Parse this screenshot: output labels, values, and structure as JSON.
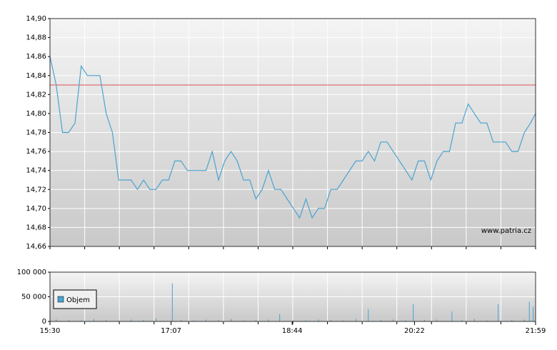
{
  "chart_data": [
    {
      "type": "line",
      "color": "#4aa3d0",
      "reference_line": 14.83,
      "reference_color": "#e05050",
      "annotation": "www.patria.cz",
      "xlim": [
        930,
        1319
      ],
      "ylim": [
        14.66,
        14.9
      ],
      "yticks": [
        {
          "value": 14.66,
          "label": "14,66"
        },
        {
          "value": 14.68,
          "label": "14,68"
        },
        {
          "value": 14.7,
          "label": "14,70"
        },
        {
          "value": 14.72,
          "label": "14,72"
        },
        {
          "value": 14.74,
          "label": "14,74"
        },
        {
          "value": 14.76,
          "label": "14,76"
        },
        {
          "value": 14.78,
          "label": "14,78"
        },
        {
          "value": 14.8,
          "label": "14,80"
        },
        {
          "value": 14.82,
          "label": "14,82"
        },
        {
          "value": 14.84,
          "label": "14,84"
        },
        {
          "value": 14.86,
          "label": "14,86"
        },
        {
          "value": 14.88,
          "label": "14,88"
        },
        {
          "value": 14.9,
          "label": "14,90"
        }
      ],
      "grid": true,
      "x": [
        930,
        935,
        940,
        945,
        950,
        955,
        960,
        965,
        970,
        975,
        980,
        985,
        990,
        995,
        1000,
        1005,
        1010,
        1015,
        1020,
        1025,
        1030,
        1035,
        1040,
        1045,
        1050,
        1055,
        1060,
        1065,
        1070,
        1075,
        1080,
        1085,
        1090,
        1095,
        1100,
        1105,
        1110,
        1115,
        1120,
        1125,
        1130,
        1135,
        1140,
        1145,
        1150,
        1155,
        1160,
        1165,
        1170,
        1175,
        1180,
        1185,
        1190,
        1195,
        1200,
        1205,
        1210,
        1215,
        1220,
        1225,
        1230,
        1235,
        1240,
        1245,
        1250,
        1255,
        1260,
        1265,
        1270,
        1275,
        1280,
        1285,
        1290,
        1295,
        1300,
        1305,
        1310,
        1315,
        1319
      ],
      "values": [
        14.86,
        14.83,
        14.78,
        14.78,
        14.79,
        14.85,
        14.84,
        14.84,
        14.84,
        14.8,
        14.78,
        14.73,
        14.73,
        14.73,
        14.72,
        14.73,
        14.72,
        14.72,
        14.73,
        14.73,
        14.75,
        14.75,
        14.74,
        14.74,
        14.74,
        14.74,
        14.76,
        14.73,
        14.75,
        14.76,
        14.75,
        14.73,
        14.73,
        14.71,
        14.72,
        14.74,
        14.72,
        14.72,
        14.71,
        14.7,
        14.69,
        14.71,
        14.69,
        14.7,
        14.7,
        14.72,
        14.72,
        14.73,
        14.74,
        14.75,
        14.75,
        14.76,
        14.75,
        14.77,
        14.77,
        14.76,
        14.75,
        14.74,
        14.73,
        14.75,
        14.75,
        14.73,
        14.75,
        14.76,
        14.76,
        14.79,
        14.79,
        14.81,
        14.8,
        14.79,
        14.79,
        14.77,
        14.77,
        14.77,
        14.76,
        14.76,
        14.78,
        14.79,
        14.8
      ]
    },
    {
      "type": "bar",
      "legend": "bottom-left",
      "xlim": [
        930,
        1319
      ],
      "xticks": [
        {
          "value": 930,
          "label": "15:30"
        },
        {
          "value": 1027,
          "label": "17:07"
        },
        {
          "value": 1124,
          "label": "18:44"
        },
        {
          "value": 1222,
          "label": "20:22"
        },
        {
          "value": 1319,
          "label": "21:59"
        }
      ],
      "ylim": [
        0,
        100000
      ],
      "yticks": [
        0,
        {
          "value": 50000,
          "label": "50 000"
        },
        {
          "value": 100000,
          "label": "100 000"
        }
      ],
      "grid": true,
      "x": [
        935,
        945,
        955,
        965,
        975,
        985,
        995,
        1005,
        1015,
        1028,
        1035,
        1045,
        1055,
        1065,
        1075,
        1085,
        1095,
        1105,
        1114,
        1125,
        1135,
        1145,
        1155,
        1165,
        1175,
        1185,
        1195,
        1205,
        1215,
        1221,
        1230,
        1240,
        1252,
        1260,
        1270,
        1280,
        1289,
        1300,
        1310,
        1314,
        1317
      ],
      "series": [
        {
          "name": "Objem",
          "color": "#4aa3d0",
          "values": [
            4000,
            3000,
            2000,
            5000,
            3000,
            2000,
            4000,
            3000,
            6000,
            77000,
            3000,
            2000,
            4000,
            3000,
            5000,
            2000,
            3000,
            4000,
            15000,
            3000,
            2000,
            4000,
            3000,
            2000,
            5000,
            25000,
            3000,
            4000,
            2000,
            35000,
            3000,
            4000,
            20000,
            3000,
            5000,
            2000,
            35000,
            3000,
            4000,
            40000,
            30000
          ]
        }
      ]
    }
  ]
}
